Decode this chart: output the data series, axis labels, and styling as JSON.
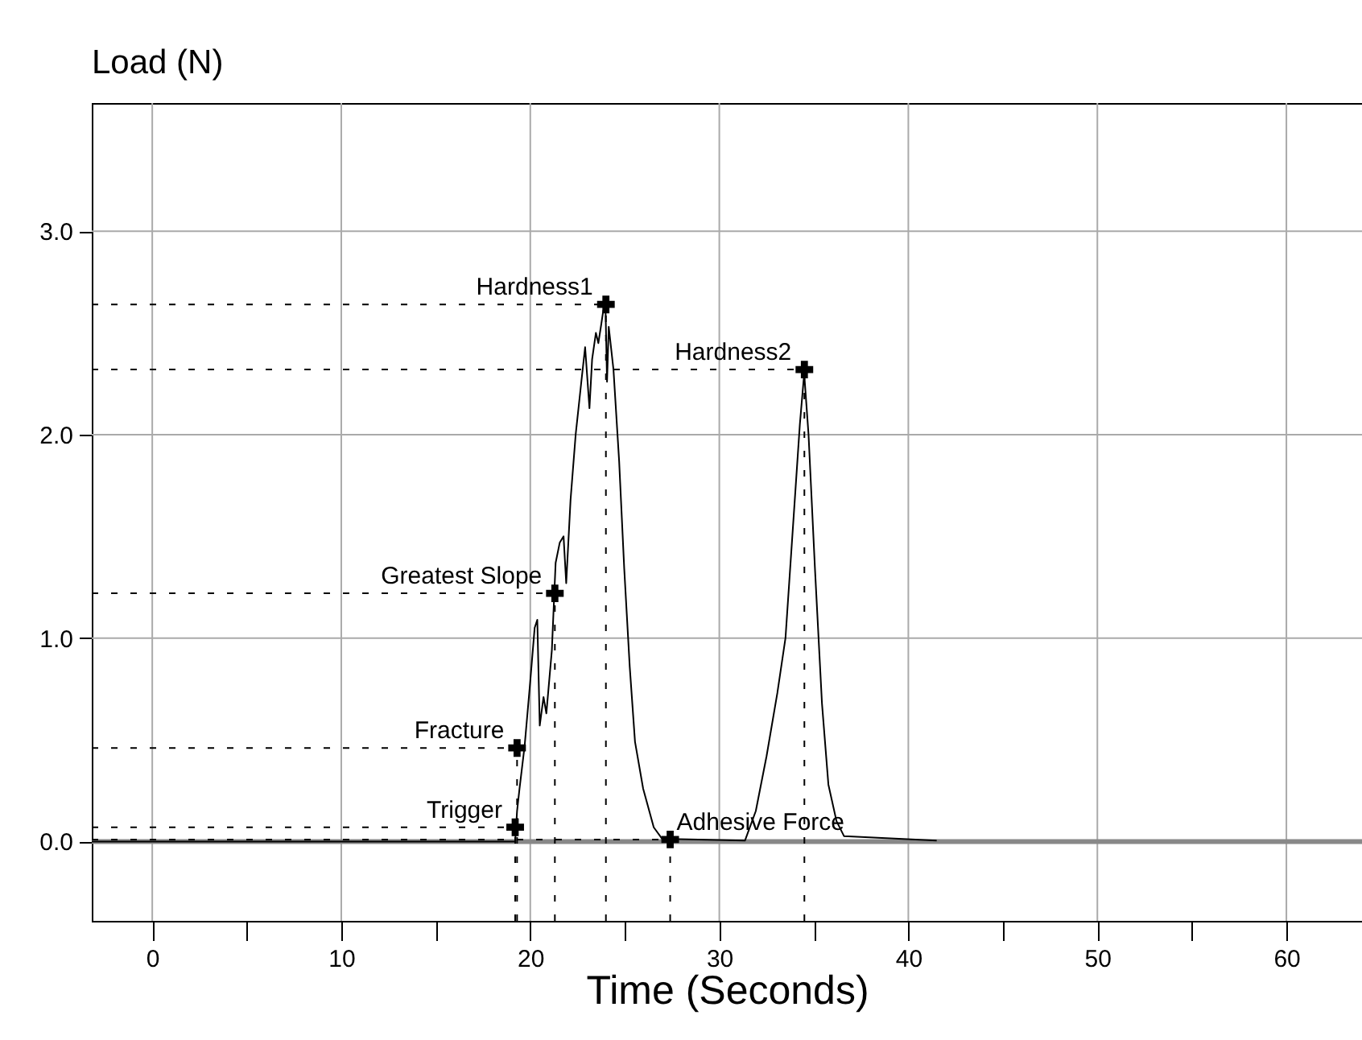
{
  "chart_data": {
    "type": "line",
    "title": "Load (N)",
    "xlabel": "Time (Seconds)",
    "xlim": [
      -3.2,
      64
    ],
    "ylim": [
      -0.39,
      3.63
    ],
    "xticks": [
      0,
      {
        "value": 5,
        "label": null
      },
      10,
      {
        "value": 15,
        "label": null
      },
      20,
      {
        "value": 25,
        "label": null
      },
      30,
      {
        "value": 35,
        "label": null
      },
      40,
      {
        "value": 45,
        "label": null
      },
      50,
      {
        "value": 55,
        "label": null
      },
      60
    ],
    "yticks": [
      {
        "value": 0,
        "label": "0.0"
      },
      {
        "value": 1,
        "label": "1.0"
      },
      {
        "value": 2,
        "label": "2.0"
      },
      {
        "value": 3,
        "label": "3.0"
      }
    ],
    "grid": true,
    "marker": "none",
    "line_style": "solid",
    "ref_lines": [
      {
        "axis": "y",
        "value": 0,
        "color": "#888888"
      }
    ],
    "series": [
      {
        "color": "#000000",
        "x": [
          -3.2,
          19.2,
          19.3,
          19.43,
          19.7,
          20.0,
          20.23,
          20.37,
          20.5,
          20.7,
          20.85,
          21.14,
          21.34,
          21.56,
          21.76,
          21.9,
          22.13,
          22.4,
          22.7,
          22.9,
          23.13,
          23.27,
          23.47,
          23.6,
          23.75,
          23.86,
          23.98,
          24.06,
          24.15,
          24.4,
          24.7,
          24.97,
          25.26,
          25.54,
          25.97,
          26.53,
          26.96,
          27.4,
          31.36,
          31.93,
          32.5,
          33.07,
          33.5,
          33.92,
          34.26,
          34.49,
          34.72,
          35.06,
          35.43,
          35.77,
          36.2,
          36.6,
          41.5
        ],
        "values": [
          0,
          0,
          0.15,
          0.26,
          0.47,
          0.79,
          1.05,
          1.09,
          0.57,
          0.71,
          0.63,
          0.94,
          1.37,
          1.47,
          1.5,
          1.27,
          1.68,
          2.0,
          2.26,
          2.43,
          2.13,
          2.37,
          2.5,
          2.45,
          2.54,
          2.61,
          2.62,
          2.26,
          2.53,
          2.32,
          1.87,
          1.34,
          0.86,
          0.49,
          0.26,
          0.07,
          0.015,
          0.013,
          0.005,
          0.15,
          0.42,
          0.73,
          1.0,
          1.58,
          2.05,
          2.3,
          2.0,
          1.34,
          0.68,
          0.28,
          0.1,
          0.026,
          0.005
        ]
      }
    ],
    "annotations": [
      {
        "text": "Hardness1",
        "x": 24.0,
        "y": 2.64
      },
      {
        "text": "Hardness2",
        "x": 34.5,
        "y": 2.32
      },
      {
        "text": "Greatest Slope",
        "x": 21.3,
        "y": 1.22
      },
      {
        "text": "Fracture",
        "x": 19.3,
        "y": 0.46
      },
      {
        "text": "Trigger",
        "x": 19.2,
        "y": 0.07
      },
      {
        "text": "Adhesive Force",
        "x": 27.4,
        "y": 0.01
      }
    ]
  }
}
